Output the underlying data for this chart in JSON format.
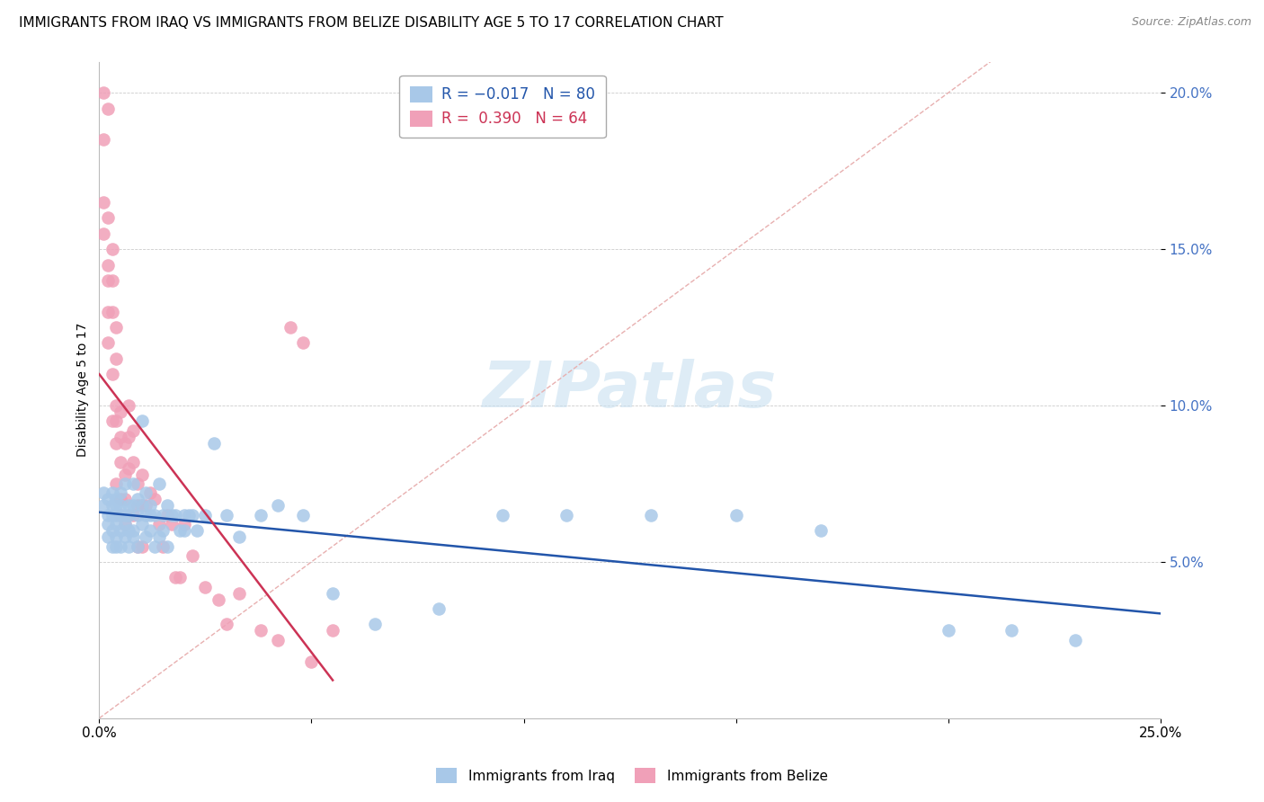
{
  "title": "IMMIGRANTS FROM IRAQ VS IMMIGRANTS FROM BELIZE DISABILITY AGE 5 TO 17 CORRELATION CHART",
  "source": "Source: ZipAtlas.com",
  "ylabel": "Disability Age 5 to 17",
  "xlim": [
    0.0,
    0.25
  ],
  "ylim": [
    0.0,
    0.21
  ],
  "xticks": [
    0.0,
    0.05,
    0.1,
    0.15,
    0.2,
    0.25
  ],
  "xticklabels": [
    "0.0%",
    "",
    "",
    "",
    "",
    "25.0%"
  ],
  "yticks": [
    0.05,
    0.1,
    0.15,
    0.2
  ],
  "yticklabels": [
    "5.0%",
    "10.0%",
    "15.0%",
    "20.0%"
  ],
  "color_iraq": "#A8C8E8",
  "color_belize": "#F0A0B8",
  "color_iraq_line": "#2255AA",
  "color_belize_line": "#CC3355",
  "color_diag": "#E0C0C0",
  "watermark": "ZIPatlas",
  "iraq_x": [
    0.001,
    0.001,
    0.002,
    0.002,
    0.002,
    0.002,
    0.003,
    0.003,
    0.003,
    0.003,
    0.003,
    0.004,
    0.004,
    0.004,
    0.004,
    0.004,
    0.004,
    0.005,
    0.005,
    0.005,
    0.005,
    0.005,
    0.006,
    0.006,
    0.006,
    0.006,
    0.007,
    0.007,
    0.007,
    0.007,
    0.008,
    0.008,
    0.008,
    0.008,
    0.009,
    0.009,
    0.009,
    0.01,
    0.01,
    0.01,
    0.011,
    0.011,
    0.011,
    0.012,
    0.012,
    0.012,
    0.013,
    0.013,
    0.014,
    0.014,
    0.015,
    0.015,
    0.016,
    0.016,
    0.017,
    0.018,
    0.019,
    0.02,
    0.02,
    0.021,
    0.022,
    0.023,
    0.025,
    0.027,
    0.03,
    0.033,
    0.038,
    0.042,
    0.048,
    0.055,
    0.065,
    0.08,
    0.095,
    0.11,
    0.13,
    0.15,
    0.17,
    0.2,
    0.215,
    0.23
  ],
  "iraq_y": [
    0.068,
    0.072,
    0.065,
    0.07,
    0.062,
    0.058,
    0.065,
    0.068,
    0.06,
    0.055,
    0.072,
    0.065,
    0.062,
    0.068,
    0.055,
    0.07,
    0.058,
    0.065,
    0.068,
    0.06,
    0.072,
    0.055,
    0.065,
    0.075,
    0.058,
    0.062,
    0.068,
    0.06,
    0.065,
    0.055,
    0.075,
    0.068,
    0.06,
    0.058,
    0.065,
    0.07,
    0.055,
    0.095,
    0.062,
    0.068,
    0.065,
    0.058,
    0.072,
    0.065,
    0.06,
    0.068,
    0.065,
    0.055,
    0.075,
    0.058,
    0.065,
    0.06,
    0.068,
    0.055,
    0.065,
    0.065,
    0.06,
    0.065,
    0.06,
    0.065,
    0.065,
    0.06,
    0.065,
    0.088,
    0.065,
    0.058,
    0.065,
    0.068,
    0.065,
    0.04,
    0.03,
    0.035,
    0.065,
    0.065,
    0.065,
    0.065,
    0.06,
    0.028,
    0.028,
    0.025
  ],
  "belize_x": [
    0.001,
    0.001,
    0.001,
    0.001,
    0.002,
    0.002,
    0.002,
    0.002,
    0.002,
    0.002,
    0.003,
    0.003,
    0.003,
    0.003,
    0.003,
    0.004,
    0.004,
    0.004,
    0.004,
    0.004,
    0.004,
    0.005,
    0.005,
    0.005,
    0.005,
    0.005,
    0.006,
    0.006,
    0.006,
    0.006,
    0.007,
    0.007,
    0.007,
    0.007,
    0.008,
    0.008,
    0.008,
    0.009,
    0.009,
    0.009,
    0.01,
    0.01,
    0.01,
    0.011,
    0.012,
    0.013,
    0.014,
    0.015,
    0.016,
    0.017,
    0.018,
    0.019,
    0.02,
    0.022,
    0.025,
    0.028,
    0.03,
    0.033,
    0.038,
    0.042,
    0.045,
    0.048,
    0.05,
    0.055
  ],
  "belize_y": [
    0.2,
    0.185,
    0.165,
    0.155,
    0.195,
    0.16,
    0.145,
    0.14,
    0.13,
    0.12,
    0.15,
    0.14,
    0.13,
    0.11,
    0.095,
    0.125,
    0.115,
    0.1,
    0.095,
    0.088,
    0.075,
    0.098,
    0.09,
    0.082,
    0.07,
    0.065,
    0.088,
    0.078,
    0.07,
    0.062,
    0.1,
    0.09,
    0.08,
    0.065,
    0.092,
    0.082,
    0.065,
    0.075,
    0.068,
    0.055,
    0.078,
    0.068,
    0.055,
    0.068,
    0.072,
    0.07,
    0.062,
    0.055,
    0.065,
    0.062,
    0.045,
    0.045,
    0.062,
    0.052,
    0.042,
    0.038,
    0.03,
    0.04,
    0.028,
    0.025,
    0.125,
    0.12,
    0.018,
    0.028
  ]
}
